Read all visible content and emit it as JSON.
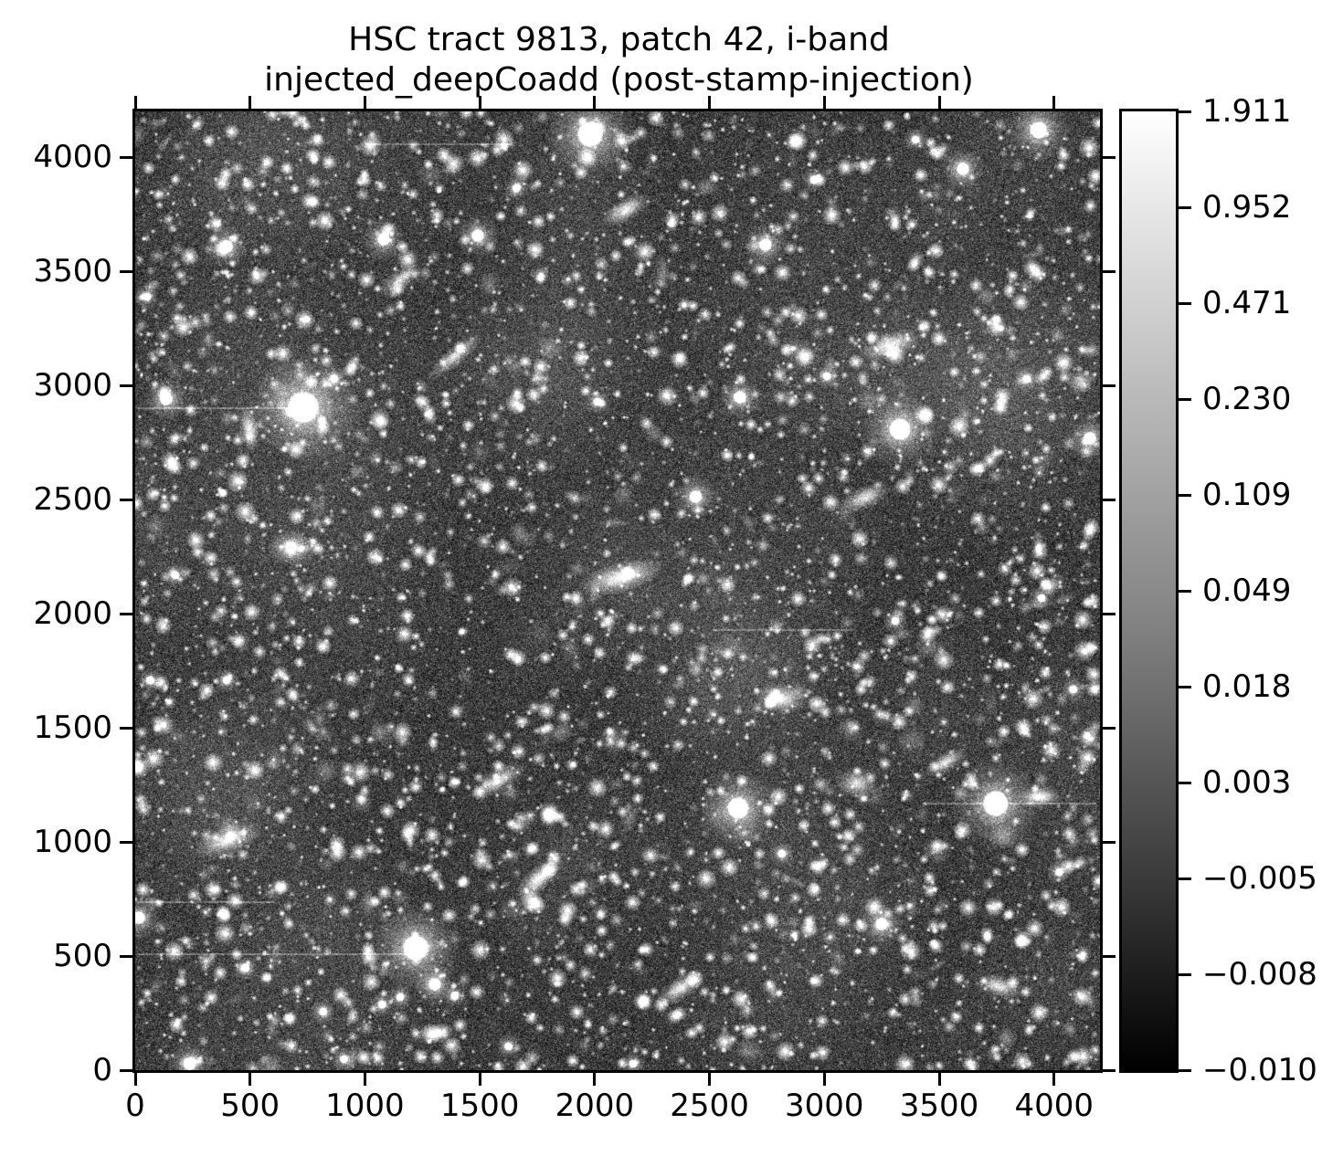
{
  "figure": {
    "background": "#ffffff",
    "text_color": "#000000",
    "spine_color": "#000000"
  },
  "chart_data": {
    "type": "heatmap",
    "title_line1": "HSC tract 9813, patch 42, i-band",
    "title_line2": "injected_deepCoadd (post-stamp-injection)",
    "xlabel": "",
    "ylabel": "",
    "xlim": [
      0,
      4200
    ],
    "ylim": [
      0,
      4200
    ],
    "grid": false,
    "colormap": "gray",
    "x_tick_values": [
      0,
      500,
      1000,
      1500,
      2000,
      2500,
      3000,
      3500,
      4000
    ],
    "x_tick_labels": [
      "0",
      "500",
      "1000",
      "1500",
      "2000",
      "2500",
      "3000",
      "3500",
      "4000"
    ],
    "y_tick_values": [
      0,
      500,
      1000,
      1500,
      2000,
      2500,
      3000,
      3500,
      4000
    ],
    "y_tick_labels": [
      "0",
      "500",
      "1000",
      "1500",
      "2000",
      "2500",
      "3000",
      "3500",
      "4000"
    ],
    "colorbar": {
      "position": "right",
      "vmin": -0.01,
      "vmax": 1.911,
      "stretch": "nonlinear (asinh-like); ticks evenly spaced along bar",
      "tick_labels": [
        "1.911",
        "0.952",
        "0.471",
        "0.230",
        "0.109",
        "0.049",
        "0.018",
        "0.003",
        "−0.005",
        "−0.008",
        "−0.010"
      ],
      "top_color": "#ffffff",
      "bottom_color": "#000000"
    },
    "image_content": {
      "description": "Grayscale deep-sky coadd image: noisy dark background densely covered with faint point sources, diffuse galaxies, several bright saturated stars with large halos, and faint horizontal trails.",
      "render": {
        "seed": 987654321,
        "noise": {
          "mean": 60,
          "sigma": 27,
          "salt_prob": 0.025,
          "min": 2,
          "max": 160
        },
        "counts": {
          "faint_stars": 3900,
          "medium_stars": 300,
          "field_galaxies": 185,
          "clouds": 55
        },
        "star_sizes": {
          "m": {
            "core": 3.0,
            "halo": 14
          },
          "l": {
            "core": 4.5,
            "halo": 24
          },
          "l2": {
            "core": 6.0,
            "halo": 34
          },
          "xl": {
            "core": 7.5,
            "halo": 42
          },
          "xl2": {
            "core": 9.0,
            "halo": 50
          },
          "xxl": {
            "core": 11.0,
            "halo": 62
          }
        },
        "bright_stars": [
          [
            1981,
            4100,
            "xl2"
          ],
          [
            3933,
            4118,
            "l2"
          ],
          [
            3603,
            3948,
            "l"
          ],
          [
            2744,
            3616,
            "l"
          ],
          [
            1491,
            3656,
            "l"
          ],
          [
            1082,
            3640,
            "l"
          ],
          [
            398,
            3608,
            "l"
          ],
          [
            52,
            3388,
            "m"
          ],
          [
            3011,
            3040,
            "m"
          ],
          [
            732,
            2904,
            "xxl"
          ],
          [
            135,
            2940,
            "l"
          ],
          [
            2012,
            2928,
            "m"
          ],
          [
            2633,
            2948,
            "l"
          ],
          [
            3329,
            2808,
            "xl"
          ],
          [
            3881,
            3028,
            "m"
          ],
          [
            175,
            2168,
            "m"
          ],
          [
            2625,
            1148,
            "xl"
          ],
          [
            3746,
            1168,
            "xl2"
          ],
          [
            1221,
            536,
            "xl2"
          ],
          [
            3249,
            640,
            "l"
          ],
          [
            16,
            668,
            "l"
          ],
          [
            4156,
            2768,
            "l"
          ],
          [
            1075,
            288,
            "m"
          ],
          [
            1392,
            328,
            "m"
          ],
          [
            818,
            256,
            "m"
          ],
          [
            909,
            48,
            "m"
          ],
          [
            237,
            28,
            "l"
          ],
          [
            2167,
            28,
            "m"
          ],
          [
            2815,
            948,
            "m"
          ],
          [
            4023,
            868,
            "m"
          ],
          [
            67,
            1708,
            "m"
          ],
          [
            398,
            1708,
            "m"
          ],
          [
            3309,
            1968,
            "m"
          ],
          [
            3945,
            2068,
            "m"
          ],
          [
            4084,
            1668,
            "m"
          ],
          [
            1660,
            3864,
            "m"
          ],
          [
            2955,
            3900,
            "m"
          ],
          [
            3397,
            4076,
            "m"
          ],
          [
            866,
            3028,
            "m"
          ],
          [
            480,
            448,
            "m"
          ],
          [
            1625,
            104,
            "m"
          ],
          [
            2440,
            2512,
            "l"
          ],
          [
            1305,
            376,
            "l"
          ],
          [
            1154,
            320,
            "m"
          ]
        ],
        "bright_galaxies": [
          [
            2135,
            3768,
            -30,
            14,
            6,
            0.8
          ],
          [
            3289,
            3176,
            -20,
            16,
            7,
            0.8
          ],
          [
            1392,
            3128,
            -40,
            18,
            5,
            0.7
          ],
          [
            684,
            2288,
            0,
            12,
            9,
            0.75
          ],
          [
            2116,
            2160,
            -15,
            22,
            8,
            0.85
          ],
          [
            3177,
            2508,
            -25,
            14,
            6,
            0.75
          ],
          [
            2812,
            1628,
            10,
            13,
            8,
            0.8
          ],
          [
            1579,
            1268,
            -30,
            16,
            6,
            0.8
          ],
          [
            406,
            1008,
            -20,
            18,
            7,
            0.8
          ],
          [
            1758,
            840,
            -40,
            15,
            6,
            0.9
          ],
          [
            2374,
            360,
            -35,
            14,
            6,
            0.8
          ],
          [
            3758,
            368,
            15,
            13,
            6,
            0.75
          ],
          [
            3528,
            1348,
            -30,
            12,
            5,
            0.75
          ],
          [
            3142,
            1256,
            0,
            11,
            8,
            0.7
          ],
          [
            497,
            2808,
            80,
            12,
            5,
            0.8
          ],
          [
            3937,
            1196,
            0,
            12,
            5,
            0.8
          ],
          [
            1154,
            3460,
            -35,
            13,
            6,
            0.65
          ]
        ],
        "trails": [
          [
            4056,
            1002,
            1638
          ],
          [
            2900,
            8,
            730
          ],
          [
            736,
            8,
            604
          ],
          [
            508,
            8,
            1210
          ],
          [
            1168,
            3428,
            4184
          ],
          [
            1928,
            2513,
            3130
          ]
        ]
      }
    }
  }
}
